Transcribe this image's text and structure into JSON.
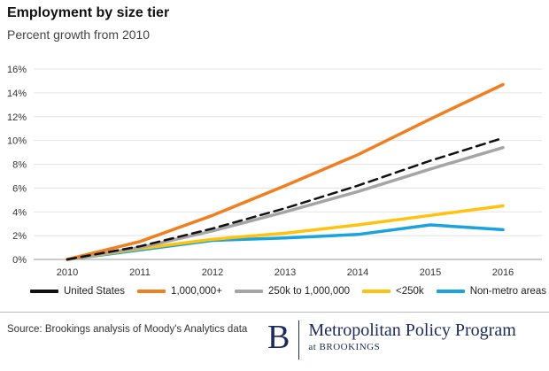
{
  "title": "Employment by size tier",
  "subtitle": "Percent growth from 2010",
  "source": "Source: Brookings analysis of Moody's Analytics data",
  "logo": {
    "mark": "B",
    "main": "Metropolitan Policy Program",
    "sub": "at BROOKINGS"
  },
  "chart_data": {
    "type": "line",
    "x": [
      "2010",
      "2011",
      "2012",
      "2013",
      "2014",
      "2015",
      "2016"
    ],
    "ylim": [
      0,
      16
    ],
    "yticks": [
      "0%",
      "2%",
      "4%",
      "6%",
      "8%",
      "10%",
      "12%",
      "14%",
      "16%"
    ],
    "grid": true,
    "legend_position": "bottom",
    "series": [
      {
        "name": "United States",
        "color": "#111111",
        "dashed": true,
        "values": [
          0,
          1.1,
          2.6,
          4.3,
          6.2,
          8.3,
          10.2
        ]
      },
      {
        "name": "1,000,000+",
        "color": "#f07f22",
        "dashed": false,
        "values": [
          0,
          1.5,
          3.7,
          6.2,
          8.8,
          11.8,
          14.7
        ]
      },
      {
        "name": "250k to 1,000,000",
        "color": "#a5a5a5",
        "dashed": false,
        "values": [
          0,
          1.0,
          2.4,
          4.0,
          5.7,
          7.6,
          9.4
        ]
      },
      {
        "name": "<250k",
        "color": "#ffc20e",
        "dashed": false,
        "values": [
          0,
          0.9,
          1.7,
          2.2,
          2.9,
          3.7,
          4.5
        ]
      },
      {
        "name": "Non-metro areas",
        "color": "#1aa3dc",
        "dashed": false,
        "values": [
          0,
          0.8,
          1.6,
          1.8,
          2.1,
          2.9,
          2.5
        ]
      }
    ]
  }
}
